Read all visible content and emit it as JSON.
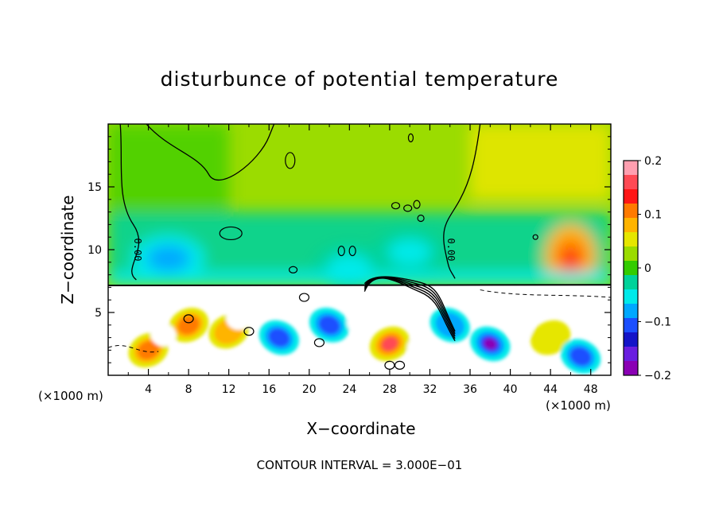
{
  "chart_data": {
    "type": "heatmap",
    "title": "disturbunce of potential temperature",
    "xlabel": "X−coordinate",
    "ylabel": "Z−coordinate",
    "x_unit": "(×1000 m)",
    "z_unit": "(×1000 m)",
    "xlim": [
      0,
      50
    ],
    "ylim": [
      0,
      20
    ],
    "xticks": [
      4,
      8,
      12,
      16,
      20,
      24,
      28,
      32,
      36,
      40,
      44,
      48
    ],
    "yticks": [
      5,
      10,
      15
    ],
    "colorbar": {
      "range": [
        -0.2,
        0.2
      ],
      "tick_values": [
        0.2,
        0.1,
        0,
        -0.1,
        -0.2
      ],
      "tick_labels": [
        "0.2",
        "0.1",
        "0",
        "−0.1",
        "−0.2"
      ],
      "colors": [
        "#ff9fb0",
        "#ff4a55",
        "#ff1616",
        "#ff7a00",
        "#ffb400",
        "#e6e600",
        "#9bdc00",
        "#33cc00",
        "#00d29a",
        "#00eaea",
        "#00a8ff",
        "#1b4fff",
        "#1414c8",
        "#6a1ee0",
        "#8a00b4"
      ]
    },
    "inversion_height": 7.2,
    "contour_label": "0.00",
    "contour_interval_text": "CONTOUR INTERVAL = 3.000E−01",
    "upper_features": [
      {
        "name": "warm anomaly",
        "x": 46,
        "z": 9.5,
        "value": 0.13
      },
      {
        "name": "cool anomaly",
        "x": 6,
        "z": 9.3,
        "value": -0.09
      },
      {
        "name": "cool anomaly",
        "x": 24,
        "z": 8.6,
        "value": -0.05
      },
      {
        "name": "cool anomaly",
        "x": 30,
        "z": 9.8,
        "value": -0.05
      }
    ],
    "lower_features": [
      {
        "x": 4,
        "z": 2.0,
        "value": 0.15
      },
      {
        "x": 8,
        "z": 4.0,
        "value": 0.12
      },
      {
        "x": 12,
        "z": 3.5,
        "value": 0.1
      },
      {
        "x": 17,
        "z": 3.0,
        "value": -0.15
      },
      {
        "x": 22,
        "z": 4.0,
        "value": -0.12
      },
      {
        "x": 28,
        "z": 2.5,
        "value": 0.18
      },
      {
        "x": 34,
        "z": 4.0,
        "value": -0.1
      },
      {
        "x": 38,
        "z": 2.5,
        "value": -0.2
      },
      {
        "x": 44,
        "z": 3.0,
        "value": 0.05
      },
      {
        "x": 47,
        "z": 1.5,
        "value": -0.15
      }
    ]
  }
}
